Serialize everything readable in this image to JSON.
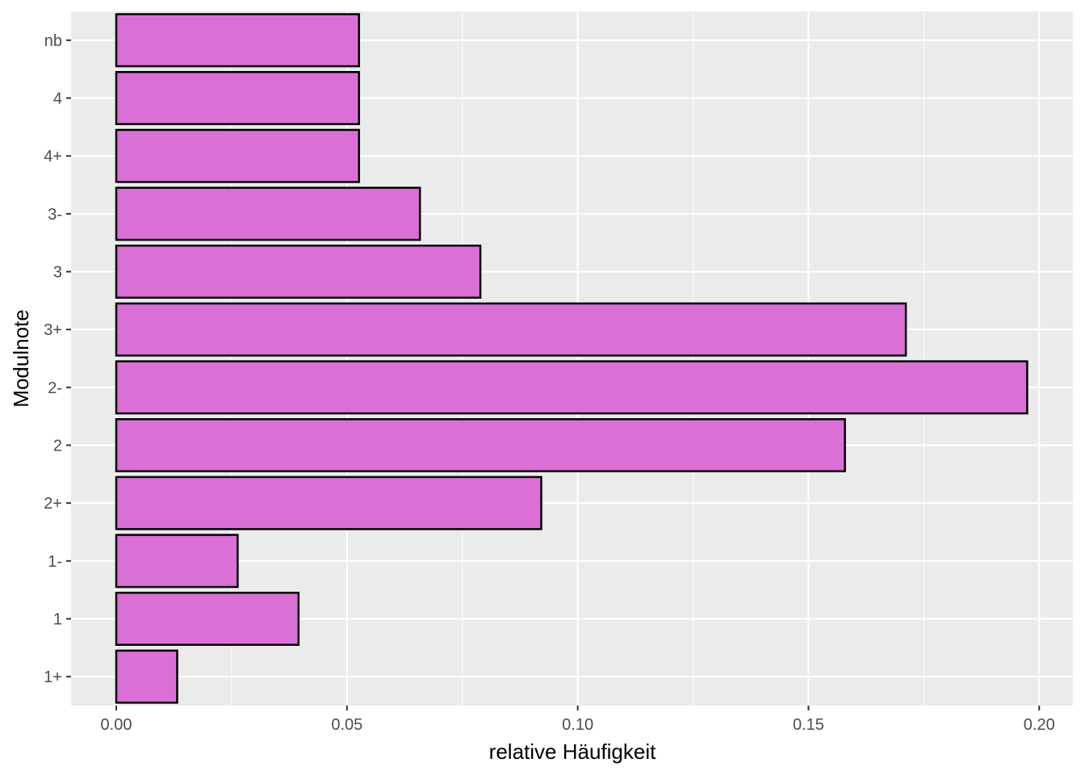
{
  "chart_data": {
    "type": "bar",
    "orientation": "horizontal",
    "title": "",
    "xlabel": "relative Häufigkeit",
    "ylabel": "Modulnote",
    "categories": [
      "1+",
      "1",
      "1-",
      "2+",
      "2",
      "2-",
      "3+",
      "3",
      "3-",
      "4+",
      "4",
      "nb"
    ],
    "values": [
      0.0132,
      0.0395,
      0.0263,
      0.0921,
      0.1579,
      0.1974,
      0.1711,
      0.0789,
      0.0658,
      0.0526,
      0.0526,
      0.0526
    ],
    "xlim": [
      -0.0098,
      0.2073
    ],
    "xticks": [
      0.0,
      0.05,
      0.1,
      0.15,
      0.2
    ],
    "xtick_labels": [
      "0.00",
      "0.05",
      "0.10",
      "0.15",
      "0.20"
    ],
    "grid": true,
    "legend": "none",
    "colors": {
      "bar_fill": "#da70d6",
      "bar_stroke": "#000000",
      "panel_bg": "#ebebeb",
      "grid_major": "#ffffff",
      "tick_text": "#4d4d4d"
    }
  }
}
